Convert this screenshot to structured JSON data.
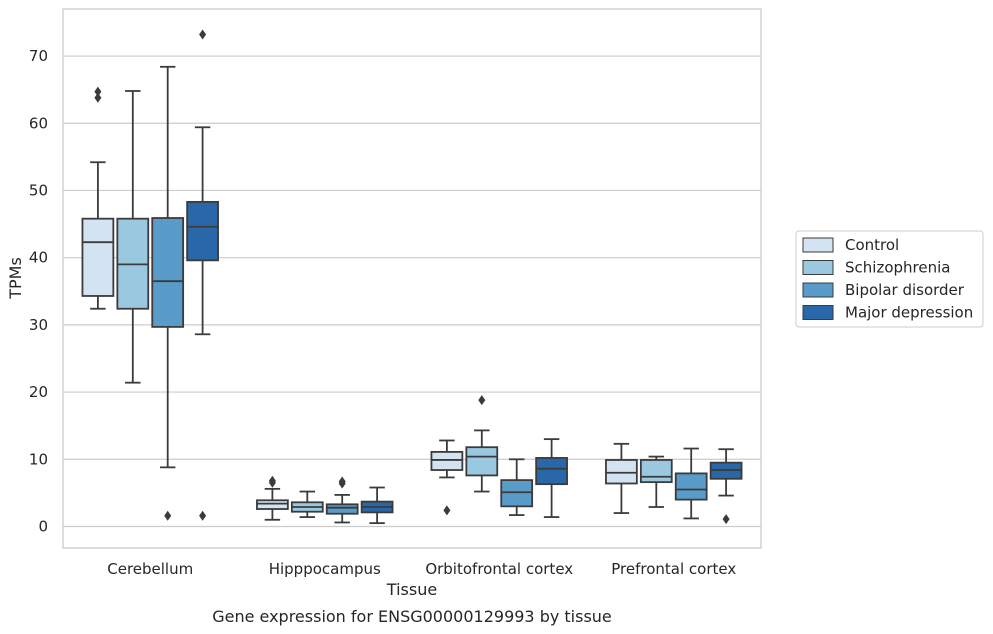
{
  "caption": "Gene expression for ENSG00000129993 by tissue",
  "chart_data": {
    "type": "box",
    "xlabel": "Tissue",
    "ylabel": "TPMs",
    "ylim": [
      -3.2,
      77
    ],
    "yticks": [
      0,
      10,
      20,
      30,
      40,
      50,
      60,
      70
    ],
    "grid": "horizontal",
    "legend_position": "right",
    "categories": [
      "Cerebellum",
      "Hipppocampus",
      "Orbitofrontal cortex",
      "Prefrontal cortex"
    ],
    "series": [
      {
        "name": "Control",
        "color": "#d3e3f2",
        "boxes": [
          {
            "min": 32.4,
            "q1": 34.3,
            "median": 42.3,
            "q3": 45.8,
            "max": 54.2,
            "outliers": [
              63.8,
              64.7
            ]
          },
          {
            "min": 1.0,
            "q1": 2.6,
            "median": 3.4,
            "q3": 3.9,
            "max": 5.6,
            "outliers": [
              6.5,
              6.8
            ]
          },
          {
            "min": 7.3,
            "q1": 8.4,
            "median": 9.9,
            "q3": 11.1,
            "max": 12.8,
            "outliers": [
              2.4
            ]
          },
          {
            "min": 2.0,
            "q1": 6.4,
            "median": 8.0,
            "q3": 9.9,
            "max": 12.3,
            "outliers": []
          }
        ]
      },
      {
        "name": "Schizophrenia",
        "color": "#9ac8e0",
        "boxes": [
          {
            "min": 21.4,
            "q1": 32.4,
            "median": 39.0,
            "q3": 45.8,
            "max": 64.8,
            "outliers": []
          },
          {
            "min": 1.4,
            "q1": 2.2,
            "median": 2.9,
            "q3": 3.6,
            "max": 5.2,
            "outliers": []
          },
          {
            "min": 5.2,
            "q1": 7.6,
            "median": 10.4,
            "q3": 11.8,
            "max": 14.3,
            "outliers": [
              18.8
            ]
          },
          {
            "min": 2.9,
            "q1": 6.6,
            "median": 7.4,
            "q3": 9.9,
            "max": 10.4,
            "outliers": []
          }
        ]
      },
      {
        "name": "Bipolar disorder",
        "color": "#5a9cc9",
        "boxes": [
          {
            "min": 8.8,
            "q1": 29.7,
            "median": 36.5,
            "q3": 45.9,
            "max": 68.4,
            "outliers": [
              1.6
            ]
          },
          {
            "min": 0.6,
            "q1": 1.9,
            "median": 2.8,
            "q3": 3.3,
            "max": 4.7,
            "outliers": [
              6.4,
              6.7
            ]
          },
          {
            "min": 1.7,
            "q1": 3.0,
            "median": 5.1,
            "q3": 6.9,
            "max": 10.0,
            "outliers": []
          },
          {
            "min": 1.2,
            "q1": 4.0,
            "median": 5.5,
            "q3": 7.9,
            "max": 11.6,
            "outliers": []
          }
        ]
      },
      {
        "name": "Major depression",
        "color": "#2a67a8",
        "boxes": [
          {
            "min": 28.6,
            "q1": 39.6,
            "median": 44.6,
            "q3": 48.3,
            "max": 59.4,
            "outliers": [
              1.6,
              73.2
            ]
          },
          {
            "min": 0.5,
            "q1": 2.1,
            "median": 2.9,
            "q3": 3.7,
            "max": 5.8,
            "outliers": []
          },
          {
            "min": 1.4,
            "q1": 6.3,
            "median": 8.6,
            "q3": 10.2,
            "max": 13.0,
            "outliers": []
          },
          {
            "min": 4.6,
            "q1": 7.1,
            "median": 8.4,
            "q3": 9.5,
            "max": 11.5,
            "outliers": [
              1.1
            ]
          }
        ]
      }
    ]
  }
}
